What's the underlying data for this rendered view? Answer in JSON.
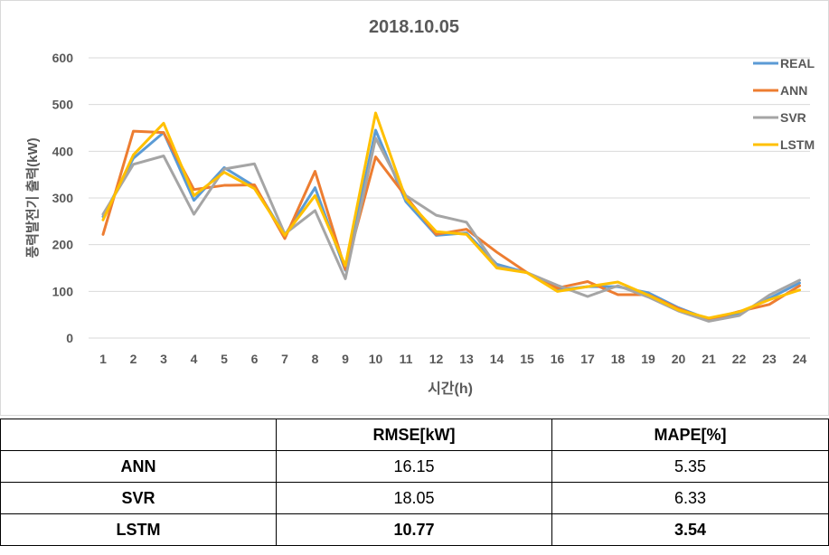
{
  "chart_data": {
    "type": "line",
    "title": "2018.10.05",
    "xlabel": "시간(h)",
    "ylabel": "풍력발전기 출력(kW)",
    "x": [
      1,
      2,
      3,
      4,
      5,
      6,
      7,
      8,
      9,
      10,
      11,
      12,
      13,
      14,
      15,
      16,
      17,
      18,
      19,
      20,
      21,
      22,
      23,
      24
    ],
    "ylim": [
      0,
      600
    ],
    "yticks": [
      0,
      100,
      200,
      300,
      400,
      500,
      600
    ],
    "grid": "horizontal",
    "legend_position": "right",
    "series": [
      {
        "name": "REAL",
        "color": "#5b9bd5",
        "values": [
          260,
          385,
          440,
          295,
          365,
          325,
          220,
          322,
          145,
          445,
          292,
          220,
          225,
          158,
          140,
          103,
          110,
          110,
          97,
          65,
          40,
          52,
          85,
          118
        ]
      },
      {
        "name": "ANN",
        "color": "#ed7d31",
        "values": [
          222,
          443,
          440,
          318,
          327,
          328,
          213,
          357,
          147,
          388,
          303,
          222,
          233,
          184,
          140,
          107,
          121,
          93,
          93,
          63,
          39,
          57,
          72,
          112
        ]
      },
      {
        "name": "SVR",
        "color": "#a5a5a5",
        "values": [
          265,
          372,
          390,
          265,
          362,
          373,
          223,
          273,
          127,
          428,
          305,
          263,
          248,
          153,
          140,
          113,
          89,
          112,
          88,
          58,
          36,
          48,
          92,
          124
        ]
      },
      {
        "name": "LSTM",
        "color": "#ffc000",
        "values": [
          253,
          392,
          460,
          305,
          355,
          320,
          220,
          305,
          155,
          482,
          298,
          228,
          222,
          150,
          140,
          100,
          110,
          120,
          92,
          60,
          43,
          56,
          82,
          103
        ]
      }
    ]
  },
  "table": {
    "headers": [
      "",
      "RMSE[kW]",
      "MAPE[%]"
    ],
    "rows": [
      {
        "model": "ANN",
        "rmse": "16.15",
        "mape": "5.35"
      },
      {
        "model": "SVR",
        "rmse": "18.05",
        "mape": "6.33"
      },
      {
        "model": "LSTM",
        "rmse": "10.77",
        "mape": "3.54"
      }
    ]
  }
}
